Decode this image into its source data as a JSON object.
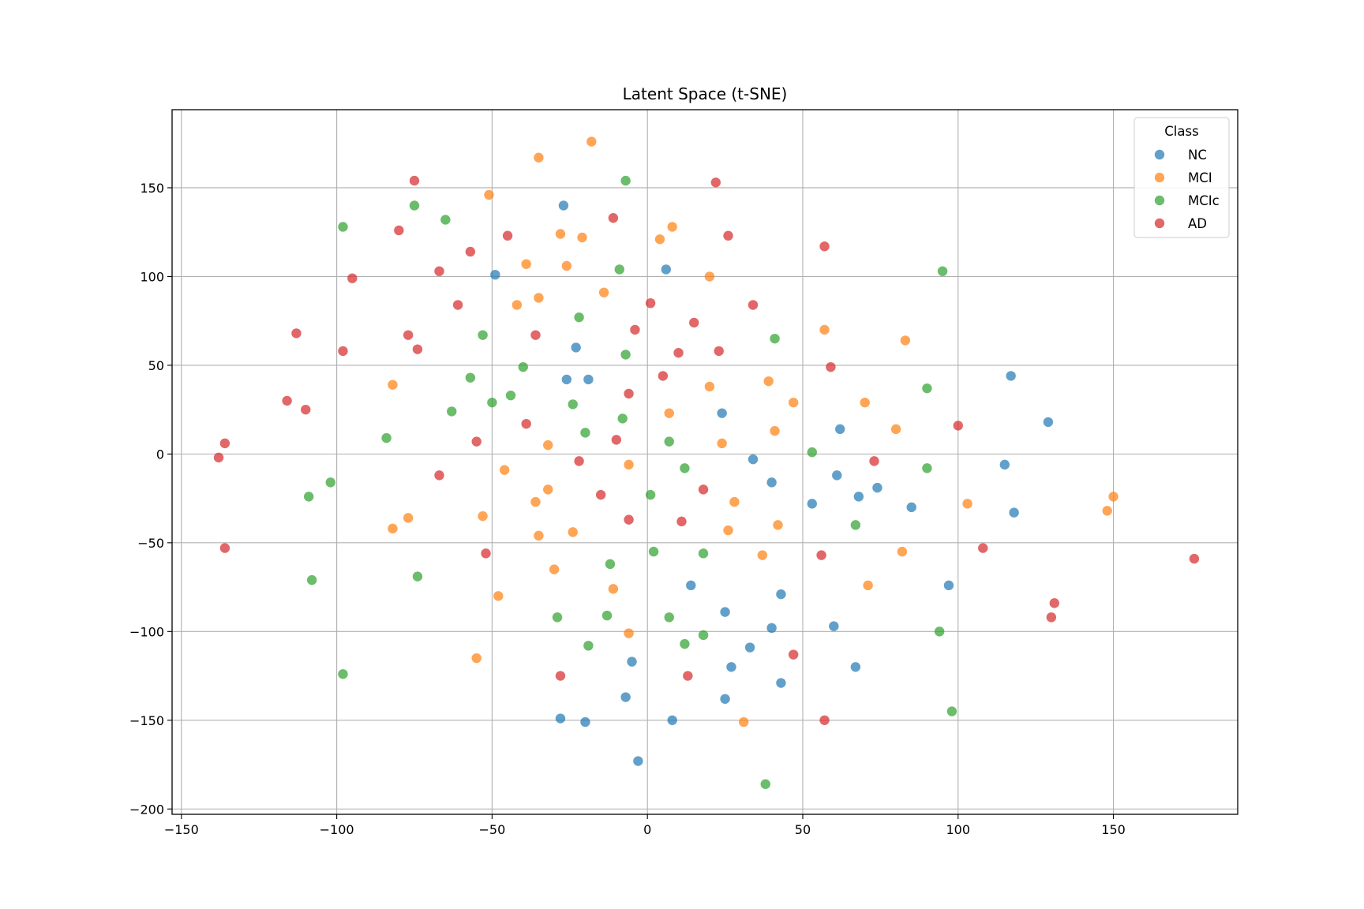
{
  "chart_data": {
    "type": "scatter",
    "title": "Latent Space (t-SNE)",
    "xlabel": "",
    "ylabel": "",
    "xlim": [
      -153,
      190
    ],
    "ylim": [
      -203,
      194
    ],
    "xticks": [
      -150,
      -100,
      -50,
      0,
      50,
      100,
      150
    ],
    "yticks": [
      -200,
      -150,
      -100,
      -50,
      0,
      50,
      100,
      150
    ],
    "xtick_labels": [
      "−150",
      "−100",
      "−50",
      "0",
      "50",
      "100",
      "150"
    ],
    "ytick_labels": [
      "−200",
      "−150",
      "−100",
      "−50",
      "0",
      "50",
      "100",
      "150"
    ],
    "grid": true,
    "legend": {
      "title": "Class",
      "placement": "top-right"
    },
    "series": [
      {
        "name": "NC",
        "color": "#1f77b4",
        "points": [
          [
            -27,
            140
          ],
          [
            -49,
            101
          ],
          [
            6,
            104
          ],
          [
            -23,
            60
          ],
          [
            -26,
            42
          ],
          [
            -19,
            42
          ],
          [
            24,
            23
          ],
          [
            117,
            44
          ],
          [
            129,
            18
          ],
          [
            62,
            14
          ],
          [
            34,
            -3
          ],
          [
            40,
            -16
          ],
          [
            61,
            -12
          ],
          [
            53,
            -28
          ],
          [
            68,
            -24
          ],
          [
            74,
            -19
          ],
          [
            85,
            -30
          ],
          [
            115,
            -6
          ],
          [
            118,
            -33
          ],
          [
            97,
            -74
          ],
          [
            43,
            -79
          ],
          [
            14,
            -74
          ],
          [
            25,
            -89
          ],
          [
            40,
            -98
          ],
          [
            60,
            -97
          ],
          [
            33,
            -109
          ],
          [
            27,
            -120
          ],
          [
            43,
            -129
          ],
          [
            67,
            -120
          ],
          [
            -5,
            -117
          ],
          [
            -7,
            -137
          ],
          [
            25,
            -138
          ],
          [
            -28,
            -149
          ],
          [
            -20,
            -151
          ],
          [
            8,
            -150
          ],
          [
            -3,
            -173
          ]
        ]
      },
      {
        "name": "MCI",
        "color": "#ff7f0e",
        "points": [
          [
            -18,
            176
          ],
          [
            -35,
            167
          ],
          [
            -51,
            146
          ],
          [
            -28,
            124
          ],
          [
            -21,
            122
          ],
          [
            4,
            121
          ],
          [
            8,
            128
          ],
          [
            -39,
            107
          ],
          [
            -26,
            106
          ],
          [
            -14,
            91
          ],
          [
            20,
            100
          ],
          [
            -42,
            84
          ],
          [
            -35,
            88
          ],
          [
            57,
            70
          ],
          [
            83,
            64
          ],
          [
            -82,
            39
          ],
          [
            20,
            38
          ],
          [
            39,
            41
          ],
          [
            47,
            29
          ],
          [
            7,
            23
          ],
          [
            70,
            29
          ],
          [
            80,
            14
          ],
          [
            41,
            13
          ],
          [
            -32,
            5
          ],
          [
            24,
            6
          ],
          [
            -46,
            -9
          ],
          [
            -6,
            -6
          ],
          [
            -32,
            -20
          ],
          [
            -36,
            -27
          ],
          [
            28,
            -27
          ],
          [
            103,
            -28
          ],
          [
            150,
            -24
          ],
          [
            148,
            -32
          ],
          [
            -77,
            -36
          ],
          [
            -82,
            -42
          ],
          [
            -53,
            -35
          ],
          [
            -35,
            -46
          ],
          [
            -24,
            -44
          ],
          [
            26,
            -43
          ],
          [
            42,
            -40
          ],
          [
            -30,
            -65
          ],
          [
            -11,
            -76
          ],
          [
            37,
            -57
          ],
          [
            82,
            -55
          ],
          [
            71,
            -74
          ],
          [
            -48,
            -80
          ],
          [
            -6,
            -101
          ],
          [
            -55,
            -115
          ],
          [
            31,
            -151
          ]
        ]
      },
      {
        "name": "MCIc",
        "color": "#2ca02c",
        "points": [
          [
            -7,
            154
          ],
          [
            -98,
            128
          ],
          [
            -75,
            140
          ],
          [
            -65,
            132
          ],
          [
            -9,
            104
          ],
          [
            95,
            103
          ],
          [
            -22,
            77
          ],
          [
            -53,
            67
          ],
          [
            41,
            65
          ],
          [
            -40,
            49
          ],
          [
            -7,
            56
          ],
          [
            -57,
            43
          ],
          [
            -44,
            33
          ],
          [
            90,
            37
          ],
          [
            -50,
            29
          ],
          [
            -24,
            28
          ],
          [
            -63,
            24
          ],
          [
            -8,
            20
          ],
          [
            -84,
            9
          ],
          [
            -20,
            12
          ],
          [
            7,
            7
          ],
          [
            53,
            1
          ],
          [
            90,
            -8
          ],
          [
            12,
            -8
          ],
          [
            -102,
            -16
          ],
          [
            1,
            -23
          ],
          [
            -109,
            -24
          ],
          [
            67,
            -40
          ],
          [
            2,
            -55
          ],
          [
            18,
            -56
          ],
          [
            -12,
            -62
          ],
          [
            -74,
            -69
          ],
          [
            -108,
            -71
          ],
          [
            -29,
            -92
          ],
          [
            -13,
            -91
          ],
          [
            7,
            -92
          ],
          [
            94,
            -100
          ],
          [
            18,
            -102
          ],
          [
            -19,
            -108
          ],
          [
            12,
            -107
          ],
          [
            -98,
            -124
          ],
          [
            98,
            -145
          ],
          [
            38,
            -186
          ]
        ]
      },
      {
        "name": "AD",
        "color": "#d62728",
        "points": [
          [
            -75,
            154
          ],
          [
            22,
            153
          ],
          [
            -11,
            133
          ],
          [
            -80,
            126
          ],
          [
            -45,
            123
          ],
          [
            26,
            123
          ],
          [
            57,
            117
          ],
          [
            -57,
            114
          ],
          [
            -67,
            103
          ],
          [
            -95,
            99
          ],
          [
            -61,
            84
          ],
          [
            1,
            85
          ],
          [
            34,
            84
          ],
          [
            -113,
            68
          ],
          [
            -77,
            67
          ],
          [
            -36,
            67
          ],
          [
            -4,
            70
          ],
          [
            15,
            74
          ],
          [
            -98,
            58
          ],
          [
            -74,
            59
          ],
          [
            10,
            57
          ],
          [
            23,
            58
          ],
          [
            59,
            49
          ],
          [
            -6,
            34
          ],
          [
            5,
            44
          ],
          [
            -116,
            30
          ],
          [
            -110,
            25
          ],
          [
            -39,
            17
          ],
          [
            100,
            16
          ],
          [
            -136,
            6
          ],
          [
            -55,
            7
          ],
          [
            -10,
            8
          ],
          [
            -138,
            -2
          ],
          [
            -22,
            -4
          ],
          [
            73,
            -4
          ],
          [
            -67,
            -12
          ],
          [
            -15,
            -23
          ],
          [
            18,
            -20
          ],
          [
            -6,
            -37
          ],
          [
            11,
            -38
          ],
          [
            176,
            -59
          ],
          [
            -136,
            -53
          ],
          [
            -52,
            -56
          ],
          [
            56,
            -57
          ],
          [
            108,
            -53
          ],
          [
            131,
            -84
          ],
          [
            130,
            -92
          ],
          [
            47,
            -113
          ],
          [
            -28,
            -125
          ],
          [
            13,
            -125
          ],
          [
            57,
            -150
          ]
        ]
      }
    ]
  }
}
